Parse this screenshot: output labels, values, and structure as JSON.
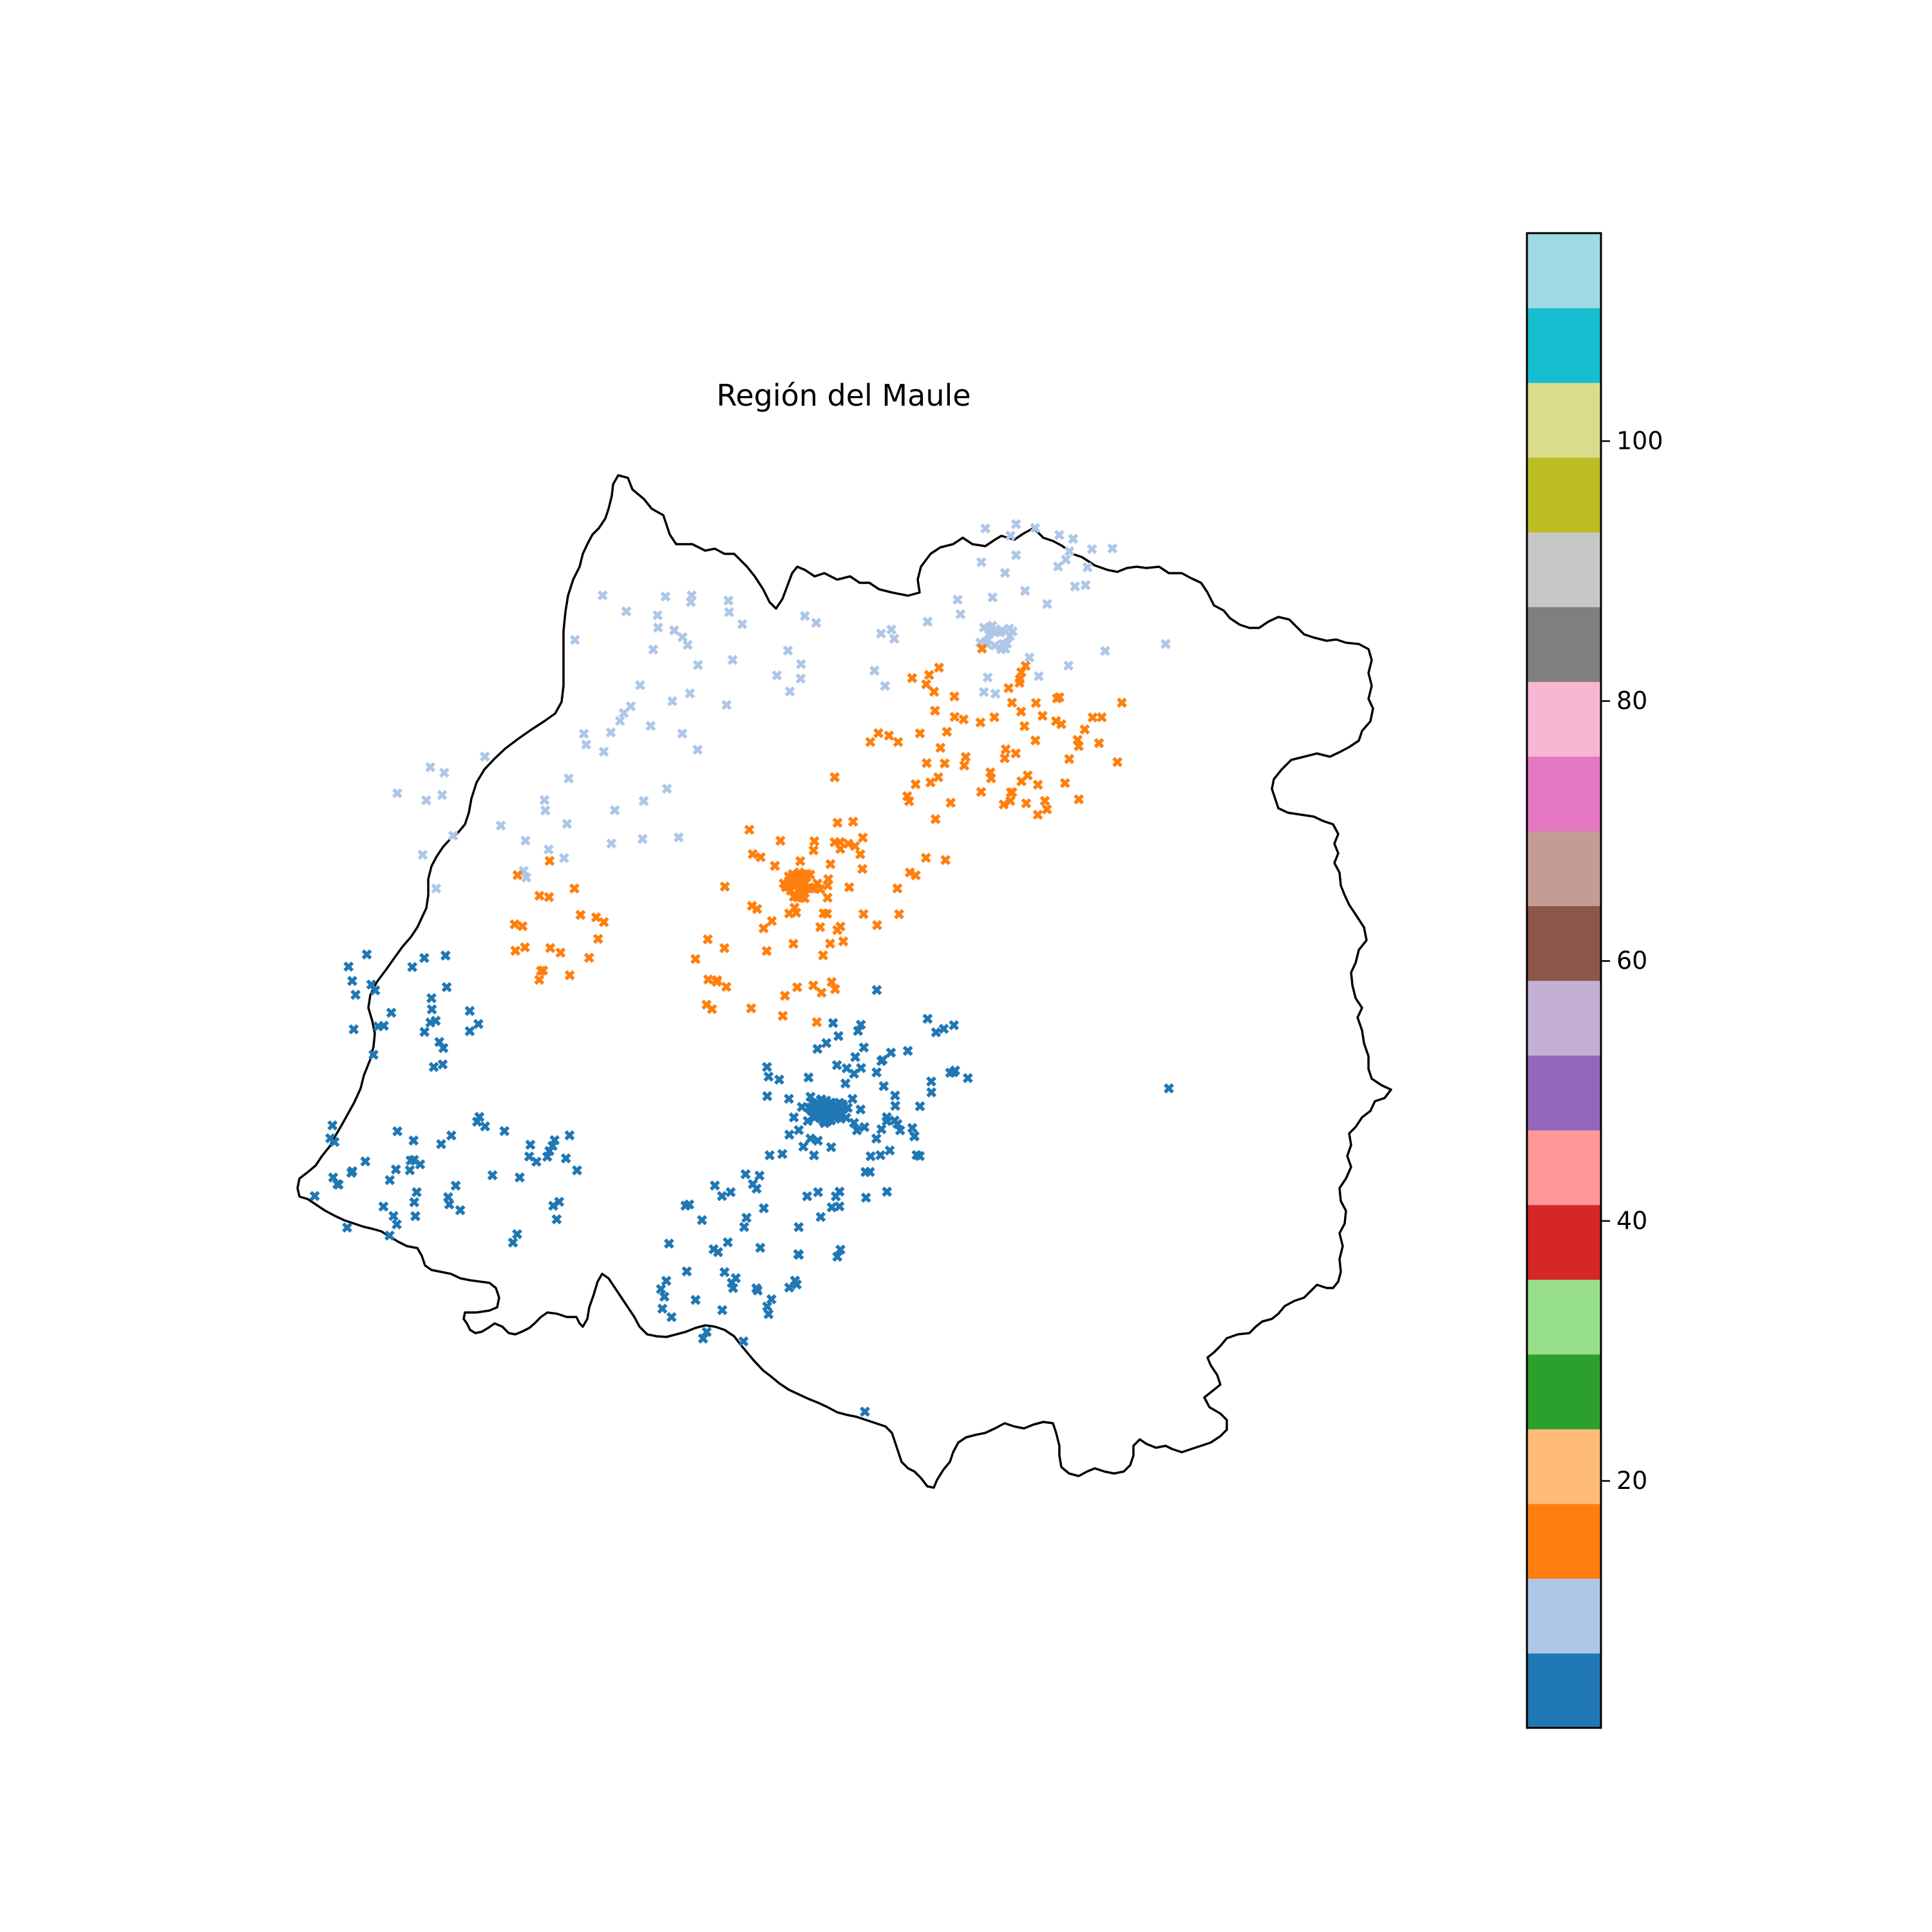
{
  "figure": {
    "title": "Región del Maule"
  },
  "colorbar": {
    "colors": [
      "#1f77b4",
      "#aec7e8",
      "#ff7f0e",
      "#ffbb78",
      "#2ca02c",
      "#98df8a",
      "#d62728",
      "#ff9896",
      "#9467bd",
      "#c5b0d5",
      "#8c564b",
      "#c49c94",
      "#e377c2",
      "#f7b6d2",
      "#7f7f7f",
      "#c7c7c7",
      "#bcbd22",
      "#dbdb8d",
      "#17becf",
      "#9edae5"
    ],
    "range": [
      1,
      116
    ],
    "ticks": [
      {
        "value": 20,
        "label": "20"
      },
      {
        "value": 40,
        "label": "40"
      },
      {
        "value": 60,
        "label": "60"
      },
      {
        "value": 80,
        "label": "80"
      },
      {
        "value": 100,
        "label": "100"
      }
    ]
  },
  "chart_data": {
    "type": "scatter",
    "title": "Región del Maule",
    "xlabel": "",
    "ylabel": "",
    "axes_visible": false,
    "marker": "x (filled)",
    "colormap": "tab20",
    "colorbar_range": [
      1,
      116
    ],
    "colorbar_ticks": [
      20,
      40,
      60,
      80,
      100
    ],
    "series": [
      {
        "color": "#aec7e8",
        "cluster_centers": [
          [
            1548,
            990
          ],
          [
            1590,
            900
          ],
          [
            1700,
            930
          ],
          [
            1000,
            1020
          ],
          [
            1150,
            990
          ],
          [
            1300,
            980
          ],
          [
            1050,
            1080
          ],
          [
            720,
            1290
          ],
          [
            1000,
            1200
          ],
          [
            850,
            1250
          ]
        ],
        "approx_points": 120
      },
      {
        "color": "#ff7f0e",
        "cluster_centers": [
          [
            1245,
            1375
          ],
          [
            1500,
            1110
          ],
          [
            1580,
            1170
          ],
          [
            1195,
            1505
          ],
          [
            820,
            1440
          ],
          [
            1400,
            1250
          ],
          [
            1300,
            1430
          ],
          [
            1640,
            1150
          ]
        ],
        "approx_points": 200
      },
      {
        "color": "#1f77b4",
        "cluster_centers": [
          [
            1285,
            1725
          ],
          [
            640,
            1565
          ],
          [
            790,
            1820
          ],
          [
            1125,
            1970
          ],
          [
            1390,
            1650
          ],
          [
            1200,
            1900
          ],
          [
            1330,
            1750
          ],
          [
            580,
            1830
          ]
        ],
        "approx_points": 260
      }
    ]
  }
}
